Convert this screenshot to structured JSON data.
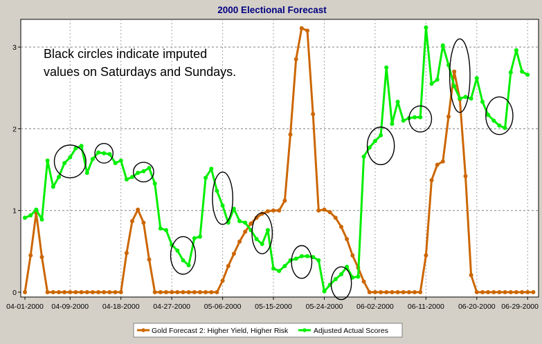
{
  "chart_data": {
    "type": "line",
    "title": "2000 Electional Forecast",
    "annotation": "Black circles indicate imputed values on Saturdays and Sundays.",
    "annotation_lines": [
      "Black circles indicate imputed",
      "values on Saturdays and Sundays."
    ],
    "xlabel": "",
    "ylabel": "",
    "x_start": "04-01-2000",
    "x_end": "06-30-2000",
    "ylim": [
      0,
      3.3
    ],
    "y_ticks": [
      "0",
      "1",
      "2",
      "3"
    ],
    "x_ticks": [
      "04-01-2000",
      "04-09-2000",
      "04-18-2000",
      "04-27-2000",
      "05-06-2000",
      "05-15-2000",
      "05-24-2000",
      "06-02-2000",
      "06-11-2000",
      "06-20-2000",
      "06-29-2000"
    ],
    "grid": true,
    "legend_position": "bottom",
    "series": [
      {
        "name": "Gold Forecast 2: Higher Yield, Higher Risk",
        "color": "#cc6600",
        "values": [
          0,
          0.45,
          0.97,
          0.43,
          0,
          0,
          0,
          0,
          0,
          0,
          0,
          0,
          0,
          0,
          0,
          0,
          0,
          0,
          0.48,
          0.87,
          1.01,
          0.85,
          0.4,
          0,
          0,
          0,
          0,
          0,
          0,
          0,
          0,
          0,
          0,
          0,
          0,
          0.14,
          0.32,
          0.47,
          0.62,
          0.74,
          0.84,
          0.91,
          0.96,
          0.99,
          1.0,
          1.0,
          1.12,
          1.93,
          2.85,
          3.23,
          3.2,
          2.18,
          1.0,
          1.01,
          0.98,
          0.91,
          0.8,
          0.65,
          0.45,
          0.3,
          0.13,
          0,
          0,
          0,
          0,
          0,
          0,
          0,
          0,
          0,
          0,
          0.45,
          1.37,
          1.56,
          1.6,
          2.15,
          2.7,
          2.36,
          1.42,
          0.21,
          0,
          0,
          0,
          0,
          0,
          0,
          0,
          0,
          0,
          0,
          0
        ]
      },
      {
        "name": "Adjusted Actual Scores",
        "color": "#00ee00",
        "values": [
          0.91,
          0.94,
          1.01,
          0.89,
          1.61,
          1.29,
          1.41,
          1.58,
          1.65,
          1.76,
          1.79,
          1.46,
          1.63,
          1.71,
          1.7,
          1.69,
          1.58,
          1.61,
          1.38,
          1.41,
          1.46,
          1.48,
          1.52,
          1.33,
          0.78,
          0.76,
          0.58,
          0.51,
          0.39,
          0.33,
          0.66,
          0.68,
          1.4,
          1.51,
          1.24,
          1.06,
          0.85,
          1.02,
          0.87,
          0.85,
          0.76,
          0.65,
          0.59,
          0.76,
          0.29,
          0.26,
          0.32,
          0.39,
          0.41,
          0.44,
          0.44,
          0.43,
          0.39,
          0.01,
          0.09,
          0.16,
          0.22,
          0.31,
          0.18,
          0.19,
          1.66,
          1.77,
          1.85,
          1.92,
          2.75,
          2.06,
          2.33,
          2.1,
          2.13,
          2.14,
          2.14,
          3.24,
          2.55,
          2.6,
          3.02,
          2.78,
          2.52,
          2.37,
          2.39,
          2.37,
          2.62,
          2.33,
          2.17,
          2.1,
          2.04,
          2.01,
          2.69,
          2.96,
          2.7,
          2.66
        ]
      }
    ],
    "imputed_circles": [
      {
        "date": "04-09-2000",
        "value": 1.6,
        "span_days": 2.8,
        "span_value": 0.2
      },
      {
        "date": "04-15-2000",
        "value": 1.7,
        "span_days": 1.6,
        "span_value": 0.12
      },
      {
        "date": "04-22-2000",
        "value": 1.47,
        "span_days": 1.8,
        "span_value": 0.12
      },
      {
        "date": "04-29-2000",
        "value": 0.45,
        "span_days": 2.2,
        "span_value": 0.23
      },
      {
        "date": "05-06-2000",
        "value": 1.15,
        "span_days": 1.8,
        "span_value": 0.32
      },
      {
        "date": "05-13-2000",
        "value": 0.72,
        "span_days": 1.8,
        "span_value": 0.25
      },
      {
        "date": "05-20-2000",
        "value": 0.37,
        "span_days": 1.8,
        "span_value": 0.2
      },
      {
        "date": "05-27-2000",
        "value": 0.11,
        "span_days": 1.8,
        "span_value": 0.2
      },
      {
        "date": "06-03-2000",
        "value": 1.79,
        "span_days": 2.4,
        "span_value": 0.23
      },
      {
        "date": "06-10-2000",
        "value": 2.12,
        "span_days": 2.0,
        "span_value": 0.16
      },
      {
        "date": "06-17-2000",
        "value": 2.65,
        "span_days": 1.8,
        "span_value": 0.45
      },
      {
        "date": "06-24-2000",
        "value": 2.16,
        "span_days": 2.4,
        "span_value": 0.23
      }
    ]
  }
}
